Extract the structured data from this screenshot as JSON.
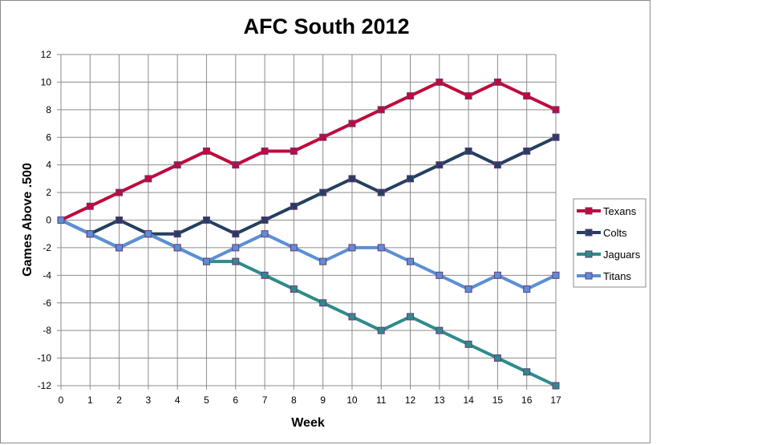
{
  "chart_data": {
    "type": "line",
    "title": "AFC South 2012",
    "xlabel": "Week",
    "ylabel": "Games Above .500",
    "x": [
      0,
      1,
      2,
      3,
      4,
      5,
      6,
      7,
      8,
      9,
      10,
      11,
      12,
      13,
      14,
      15,
      16,
      17
    ],
    "xlim": [
      0,
      17
    ],
    "ylim": [
      -12,
      12
    ],
    "ytick_step": 2,
    "grid": true,
    "legend_position": "right",
    "series": [
      {
        "name": "Texans",
        "color": "#be0a3c",
        "values": [
          0,
          1,
          2,
          3,
          4,
          5,
          4,
          5,
          5,
          6,
          7,
          8,
          9,
          10,
          9,
          10,
          9,
          8
        ]
      },
      {
        "name": "Colts",
        "color": "#243f60",
        "values": [
          0,
          -1,
          0,
          -1,
          -1,
          0,
          -1,
          0,
          1,
          2,
          3,
          2,
          3,
          4,
          5,
          4,
          5,
          6
        ]
      },
      {
        "name": "Jaguars",
        "color": "#2e8b8b",
        "values": [
          0,
          -1,
          -2,
          -1,
          -2,
          -3,
          -3,
          -4,
          -5,
          -6,
          -7,
          -8,
          -7,
          -8,
          -9,
          -10,
          -11,
          -12
        ]
      },
      {
        "name": "Titans",
        "color": "#5b8fd5",
        "values": [
          0,
          -1,
          -2,
          -1,
          -2,
          -3,
          -2,
          -1,
          -2,
          -3,
          -2,
          -2,
          -3,
          -4,
          -5,
          -4,
          -5,
          -4
        ]
      }
    ]
  }
}
